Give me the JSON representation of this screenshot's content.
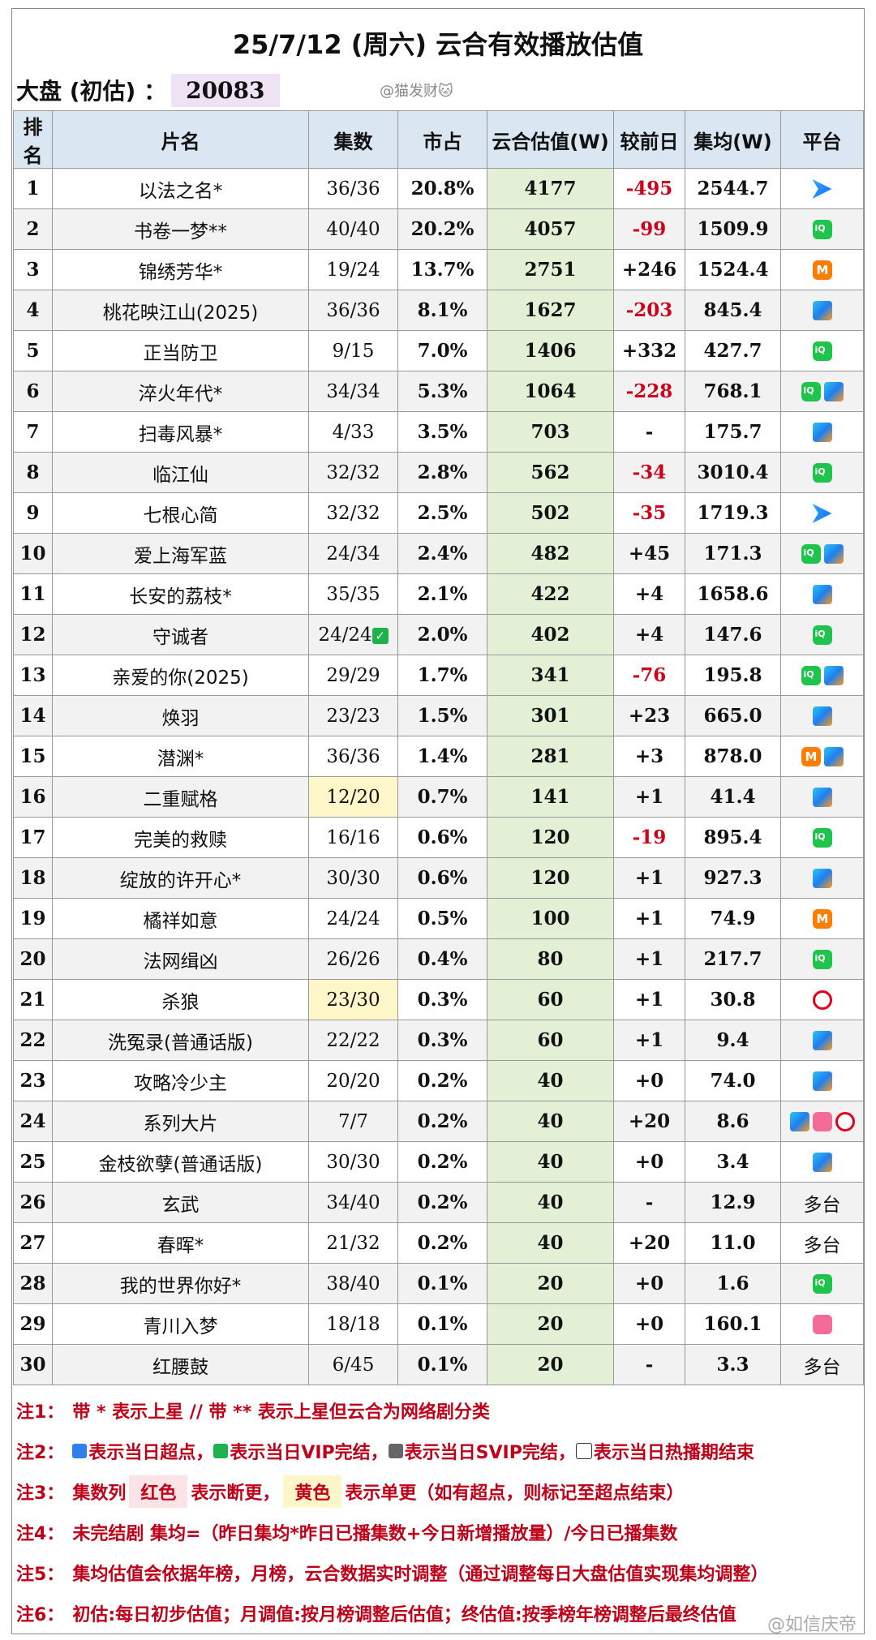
{
  "title": "25/7/12 (周六) 云合有效播放估值",
  "dapan": {
    "label": "大盘 (初估) ：",
    "value": "20083"
  },
  "watermark_top": "@猫发财🐱",
  "columns": [
    "排名",
    "片名",
    "集数",
    "市占",
    "云合估值(W)",
    "较前日",
    "集均(W)",
    "平台"
  ],
  "rows": [
    {
      "rank": "1",
      "name": "以法之名*",
      "eps": "36/36",
      "share": "20.8%",
      "est": "4177",
      "diff": "-495",
      "avg": "2544.7",
      "platforms": [
        "youku"
      ],
      "neg": true
    },
    {
      "rank": "2",
      "name": "书卷一梦**",
      "eps": "40/40",
      "share": "20.2%",
      "est": "4057",
      "diff": "-99",
      "avg": "1509.9",
      "platforms": [
        "iqiyi"
      ],
      "neg": true
    },
    {
      "rank": "3",
      "name": "锦绣芳华*",
      "eps": "19/24",
      "share": "13.7%",
      "est": "2751",
      "diff": "+246",
      "avg": "1524.4",
      "platforms": [
        "mango"
      ]
    },
    {
      "rank": "4",
      "name": "桃花映江山(2025)",
      "eps": "36/36",
      "share": "8.1%",
      "est": "1627",
      "diff": "-203",
      "avg": "845.4",
      "platforms": [
        "tencent"
      ],
      "neg": true
    },
    {
      "rank": "5",
      "name": "正当防卫",
      "eps": "9/15",
      "share": "7.0%",
      "est": "1406",
      "diff": "+332",
      "avg": "427.7",
      "platforms": [
        "iqiyi"
      ]
    },
    {
      "rank": "6",
      "name": "淬火年代*",
      "eps": "34/34",
      "share": "5.3%",
      "est": "1064",
      "diff": "-228",
      "avg": "768.1",
      "platforms": [
        "iqiyi",
        "tencent"
      ],
      "neg": true
    },
    {
      "rank": "7",
      "name": "扫毒风暴*",
      "eps": "4/33",
      "share": "3.5%",
      "est": "703",
      "diff": "-",
      "avg": "175.7",
      "platforms": [
        "tencent"
      ]
    },
    {
      "rank": "8",
      "name": "临江仙",
      "eps": "32/32",
      "share": "2.8%",
      "est": "562",
      "diff": "-34",
      "avg": "3010.4",
      "platforms": [
        "iqiyi"
      ],
      "neg": true
    },
    {
      "rank": "9",
      "name": "七根心简",
      "eps": "32/32",
      "share": "2.5%",
      "est": "502",
      "diff": "-35",
      "avg": "1719.3",
      "platforms": [
        "youku"
      ],
      "neg": true
    },
    {
      "rank": "10",
      "name": "爱上海军蓝",
      "eps": "24/34",
      "share": "2.4%",
      "est": "482",
      "diff": "+45",
      "avg": "171.3",
      "platforms": [
        "iqiyi",
        "tencent"
      ]
    },
    {
      "rank": "11",
      "name": "长安的荔枝*",
      "eps": "35/35",
      "share": "2.1%",
      "est": "422",
      "diff": "+4",
      "avg": "1658.6",
      "platforms": [
        "tencent"
      ]
    },
    {
      "rank": "12",
      "name": "守诚者",
      "eps": "24/24",
      "check": true,
      "share": "2.0%",
      "est": "402",
      "diff": "+4",
      "avg": "147.6",
      "platforms": [
        "iqiyi"
      ]
    },
    {
      "rank": "13",
      "name": "亲爱的你(2025)",
      "eps": "29/29",
      "share": "1.7%",
      "est": "341",
      "diff": "-76",
      "avg": "195.8",
      "platforms": [
        "iqiyi",
        "tencent"
      ],
      "neg": true
    },
    {
      "rank": "14",
      "name": "焕羽",
      "eps": "23/23",
      "share": "1.5%",
      "est": "301",
      "diff": "+23",
      "avg": "665.0",
      "platforms": [
        "tencent"
      ]
    },
    {
      "rank": "15",
      "name": "潜渊*",
      "eps": "36/36",
      "share": "1.4%",
      "est": "281",
      "diff": "+3",
      "avg": "878.0",
      "platforms": [
        "mango",
        "tencent"
      ]
    },
    {
      "rank": "16",
      "name": "二重赋格",
      "eps": "12/20",
      "yellow": true,
      "share": "0.7%",
      "est": "141",
      "diff": "+1",
      "avg": "41.4",
      "platforms": [
        "tencent"
      ]
    },
    {
      "rank": "17",
      "name": "完美的救赎",
      "eps": "16/16",
      "share": "0.6%",
      "est": "120",
      "diff": "-19",
      "avg": "895.4",
      "platforms": [
        "iqiyi"
      ],
      "neg": true
    },
    {
      "rank": "18",
      "name": "绽放的许开心*",
      "eps": "30/30",
      "share": "0.6%",
      "est": "120",
      "diff": "+1",
      "avg": "927.3",
      "platforms": [
        "tencent"
      ]
    },
    {
      "rank": "19",
      "name": "橘祥如意",
      "eps": "24/24",
      "share": "0.5%",
      "est": "100",
      "diff": "+1",
      "avg": "74.9",
      "platforms": [
        "mango"
      ]
    },
    {
      "rank": "20",
      "name": "法网缉凶",
      "eps": "26/26",
      "share": "0.4%",
      "est": "80",
      "diff": "+1",
      "avg": "217.7",
      "platforms": [
        "iqiyi"
      ]
    },
    {
      "rank": "21",
      "name": "杀狼",
      "eps": "23/30",
      "yellow": true,
      "share": "0.3%",
      "est": "60",
      "diff": "+1",
      "avg": "30.8",
      "platforms": [
        "migu"
      ]
    },
    {
      "rank": "22",
      "name": "洗冤录(普通话版)",
      "eps": "22/22",
      "share": "0.3%",
      "est": "60",
      "diff": "+1",
      "avg": "9.4",
      "platforms": [
        "tencent"
      ]
    },
    {
      "rank": "23",
      "name": "攻略冷少主",
      "eps": "20/20",
      "share": "0.2%",
      "est": "40",
      "diff": "+0",
      "avg": "74.0",
      "platforms": [
        "tencent"
      ]
    },
    {
      "rank": "24",
      "name": "系列大片",
      "eps": "7/7",
      "share": "0.2%",
      "est": "40",
      "diff": "+20",
      "avg": "8.6",
      "platforms": [
        "tencent",
        "bili",
        "migu"
      ]
    },
    {
      "rank": "25",
      "name": "金枝欲孽(普通话版)",
      "eps": "30/30",
      "share": "0.2%",
      "est": "40",
      "diff": "+0",
      "avg": "3.4",
      "platforms": [
        "tencent"
      ]
    },
    {
      "rank": "26",
      "name": "玄武",
      "eps": "34/40",
      "share": "0.2%",
      "est": "40",
      "diff": "-",
      "avg": "12.9",
      "platform_text": "多台"
    },
    {
      "rank": "27",
      "name": "春晖*",
      "eps": "21/32",
      "share": "0.2%",
      "est": "40",
      "diff": "+20",
      "avg": "11.0",
      "platform_text": "多台"
    },
    {
      "rank": "28",
      "name": "我的世界你好*",
      "eps": "38/40",
      "share": "0.1%",
      "est": "20",
      "diff": "+0",
      "avg": "1.6",
      "platforms": [
        "iqiyi"
      ]
    },
    {
      "rank": "29",
      "name": "青川入梦",
      "eps": "18/18",
      "share": "0.1%",
      "est": "20",
      "diff": "+0",
      "avg": "160.1",
      "platforms": [
        "bili"
      ]
    },
    {
      "rank": "30",
      "name": "红腰鼓",
      "eps": "6/45",
      "share": "0.1%",
      "est": "20",
      "diff": "-",
      "avg": "3.3",
      "platform_text": "多台"
    }
  ],
  "notes": {
    "n1": {
      "label": "注1：",
      "text": "带 * 表示上星 // 带 ** 表示上星但云合为网络剧分类"
    },
    "n2": {
      "label": "注2：",
      "a": "表示当日超点，",
      "b": "表示当日VIP完结，",
      "c": "表示当日SVIP完结，",
      "d": "表示当日热播期结束"
    },
    "n3": {
      "label": "注3：",
      "a": "集数列",
      "red": "红色",
      "b": "表示断更，",
      "yellow": "黄色",
      "c": "表示单更（如有超点，则标记至超点结束）"
    },
    "n4": {
      "label": "注4：",
      "text": "未完结剧 集均=（昨日集均*昨日已播集数+今日新增播放量）/今日已播集数"
    },
    "n5": {
      "label": "注5：",
      "text": "集均估值会依据年榜，月榜，云合数据实时调整（通过调整每日大盘估值实现集均调整）"
    },
    "n6": {
      "label": "注6：",
      "text": "初估:每日初步估值；月调值:按月榜调整后估值；终估值:按季榜年榜调整后最终估值"
    }
  },
  "watermark_bottom": "@如信庆帝"
}
